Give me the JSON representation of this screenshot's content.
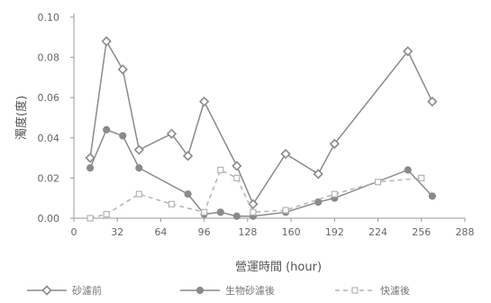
{
  "chart_data": {
    "type": "line",
    "xlabel": "營運時間 (hour)",
    "ylabel": "濁度(度)",
    "xlim": [
      0,
      288
    ],
    "ylim": [
      0,
      0.1
    ],
    "xticks": [
      0,
      32,
      64,
      96,
      128,
      160,
      192,
      224,
      256,
      288
    ],
    "xtick_labels": [
      "0",
      "32",
      "64",
      "96",
      "128",
      "160",
      "192",
      "224",
      "256",
      "288"
    ],
    "yticks": [
      0,
      0.02,
      0.04,
      0.06,
      0.08,
      0.1
    ],
    "ytick_labels": [
      "0.00",
      "0.02",
      "0.04",
      "0.06",
      "0.08",
      "0.10"
    ],
    "grid": false,
    "legend_position": "bottom",
    "series": [
      {
        "name": "砂濾前",
        "color": "#8a8a8a",
        "dash": "solid",
        "marker": "diamond",
        "x": [
          12,
          24,
          36,
          48,
          72,
          84,
          96,
          120,
          132,
          156,
          180,
          192,
          246,
          264
        ],
        "y": [
          0.03,
          0.088,
          0.074,
          0.034,
          0.042,
          0.031,
          0.058,
          0.026,
          0.007,
          0.032,
          0.022,
          0.037,
          0.083,
          0.058
        ]
      },
      {
        "name": "生物砂濾後",
        "color": "#8a8a8a",
        "dash": "solid",
        "marker": "circle",
        "x": [
          12,
          24,
          36,
          48,
          84,
          96,
          108,
          120,
          132,
          156,
          180,
          192,
          246,
          264
        ],
        "y": [
          0.025,
          0.044,
          0.041,
          0.025,
          0.012,
          0.002,
          0.003,
          0.001,
          0.001,
          0.003,
          0.008,
          0.01,
          0.024,
          0.011
        ]
      },
      {
        "name": "快濾後",
        "color": "#b5b5b5",
        "dash": "dashed",
        "marker": "square",
        "x": [
          12,
          24,
          48,
          72,
          96,
          108,
          120,
          132,
          156,
          192,
          224,
          256
        ],
        "y": [
          0.0,
          0.002,
          0.012,
          0.007,
          0.003,
          0.024,
          0.02,
          0.003,
          0.004,
          0.012,
          0.018,
          0.02
        ]
      }
    ]
  }
}
